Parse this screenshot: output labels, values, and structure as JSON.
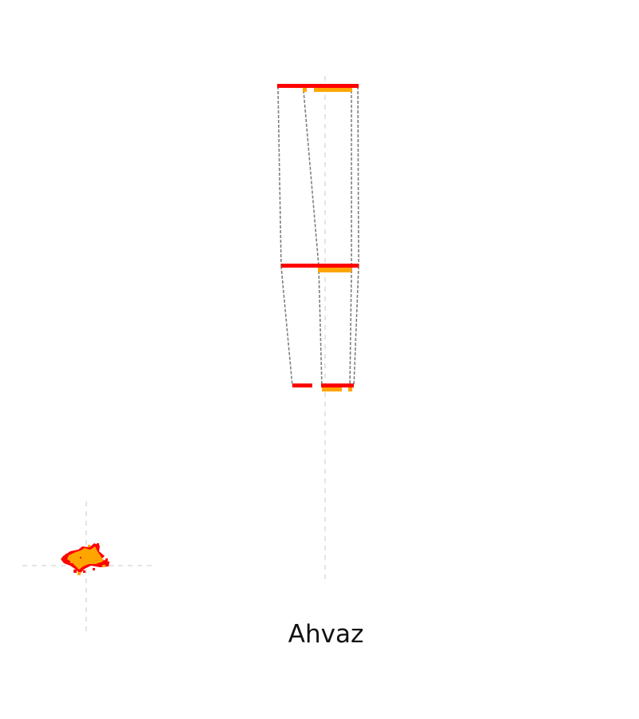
{
  "caption": "Ahvaz",
  "colors": {
    "background": "#ffffff",
    "urban_core": "#ff0000",
    "urban_expansion": "#ffa500",
    "connector": "#808080",
    "guide": "#d3d3d3"
  }
}
